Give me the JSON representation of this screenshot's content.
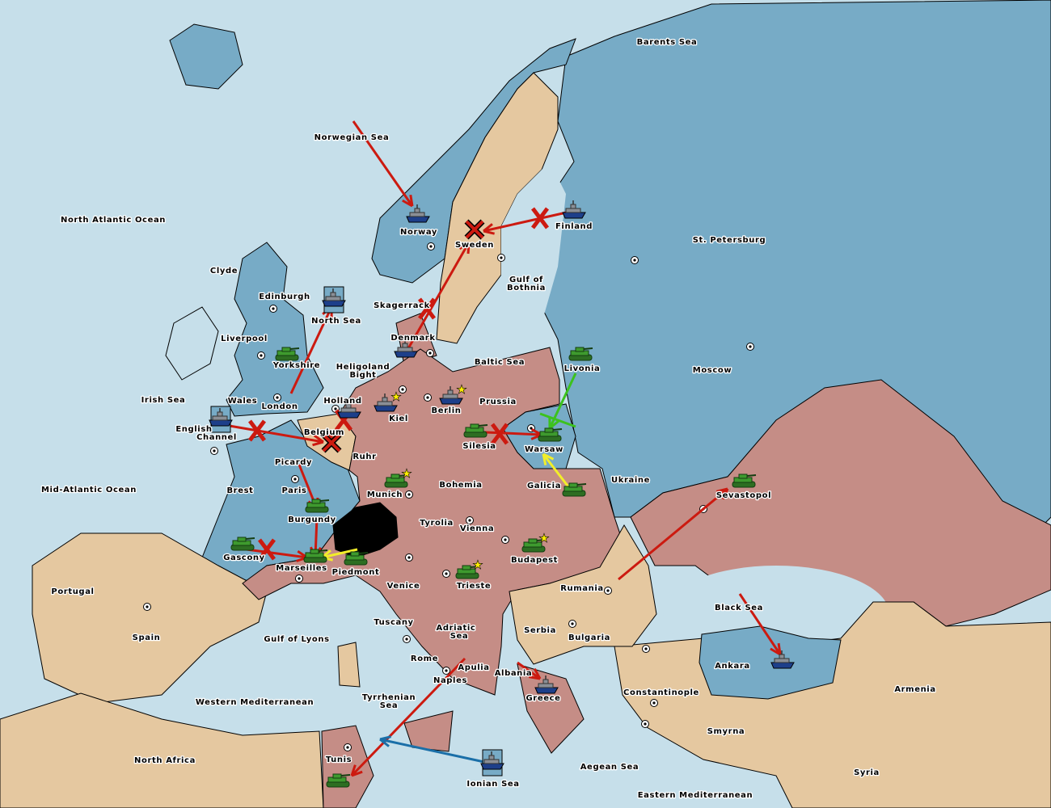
{
  "colors": {
    "sea": "#c6dfea",
    "blue_power": "#77abc6",
    "pink_power": "#c58d86",
    "neutral": "#e5c8a0",
    "impassable": "#000000",
    "army": "#3e9a2e",
    "fleet": "#8a8f96",
    "order_red": "#cc1a10",
    "order_yellow": "#f2ee2a",
    "order_green": "#3cc21e",
    "order_blue": "#1a6fa8"
  },
  "labels": [
    "Barents Sea",
    "Norwegian Sea",
    "North Atlantic Ocean",
    "Norway",
    "Sweden",
    "Finland",
    "St. Petersburg",
    "Gulf of",
    "Bothnia",
    "Clyde",
    "Edinburgh",
    "Skagerrack",
    "North Sea",
    "Liverpool",
    "Denmark",
    "Baltic Sea",
    "Yorkshire",
    "Heligoland",
    "Bight",
    "Livonia",
    "Moscow",
    "Irish Sea",
    "Wales",
    "Holland",
    "Prussia",
    "London",
    "Kiel",
    "Berlin",
    "English",
    "Channel",
    "Belgium",
    "Silesia",
    "Warsaw",
    "Ruhr",
    "Picardy",
    "Mid-Atlantic Ocean",
    "Brest",
    "Paris",
    "Munich",
    "Bohemia",
    "Galicia",
    "Ukraine",
    "Sevastopol",
    "Burgundy",
    "Tyrolia",
    "Vienna",
    "Gascony",
    "Budapest",
    "Marseilles",
    "Piedmont",
    "Portugal",
    "Venice",
    "Trieste",
    "Rumania",
    "Black Sea",
    "Tuscany",
    "Adriatic",
    "Sea",
    "Serbia",
    "Spain",
    "Gulf of Lyons",
    "Bulgaria",
    "Rome",
    "Apulia",
    "Albania",
    "Ankara",
    "Naples",
    "Armenia",
    "Constantinople",
    "Greece",
    "Western Mediterranean",
    "Tyrrhenian",
    "Sea",
    "Smyrna",
    "North Africa",
    "Tunis",
    "Aegean Sea",
    "Syria",
    "Ionian Sea",
    "Eastern Mediterranean"
  ],
  "units": [
    {
      "type": "fleet",
      "province": "Norway"
    },
    {
      "type": "fleet",
      "province": "Finland"
    },
    {
      "type": "fleet",
      "province": "Denmark"
    },
    {
      "type": "fleet",
      "province": "Holland"
    },
    {
      "type": "fleet",
      "province": "Kiel"
    },
    {
      "type": "fleet",
      "province": "Berlin"
    },
    {
      "type": "fleet",
      "province": "Greece"
    },
    {
      "type": "fleet",
      "province": "Ankara"
    },
    {
      "type": "fleet",
      "province": "North Sea",
      "dislodged": true
    },
    {
      "type": "fleet",
      "province": "English Channel",
      "dislodged": true
    },
    {
      "type": "fleet",
      "province": "Ionian Sea",
      "dislodged": true
    },
    {
      "type": "army",
      "province": "Yorkshire"
    },
    {
      "type": "army",
      "province": "Livonia"
    },
    {
      "type": "army",
      "province": "Silesia"
    },
    {
      "type": "army",
      "province": "Warsaw"
    },
    {
      "type": "army",
      "province": "Galicia"
    },
    {
      "type": "army",
      "province": "Munich"
    },
    {
      "type": "army",
      "province": "Burgundy"
    },
    {
      "type": "army",
      "province": "Gascony"
    },
    {
      "type": "army",
      "province": "Marseilles"
    },
    {
      "type": "army",
      "province": "Piedmont"
    },
    {
      "type": "army",
      "province": "Budapest"
    },
    {
      "type": "army",
      "province": "Trieste"
    },
    {
      "type": "army",
      "province": "Sevastopol"
    },
    {
      "type": "army",
      "province": "Tunis"
    }
  ],
  "home_center_stars": [
    "Kiel",
    "Berlin",
    "Munich",
    "Budapest",
    "Trieste"
  ],
  "orders": [
    {
      "color": "red",
      "from": "Norwegian Sea",
      "to": "Norway"
    },
    {
      "color": "red",
      "from": "Yorkshire",
      "to": "North Sea"
    },
    {
      "color": "red",
      "from": "Denmark",
      "to": "Sweden",
      "failed": true
    },
    {
      "color": "red",
      "from": "Finland",
      "to": "Sweden",
      "failed": true
    },
    {
      "color": "red",
      "from": "English Channel",
      "to": "Belgium",
      "failed": true
    },
    {
      "color": "red",
      "from": "Holland",
      "to": "Belgium",
      "failed": true
    },
    {
      "color": "red",
      "from": "Picardy",
      "to": "Burgundy"
    },
    {
      "color": "red",
      "from": "Burgundy",
      "to": "Marseilles"
    },
    {
      "color": "red",
      "from": "Gascony",
      "to": "Marseilles",
      "failed": true
    },
    {
      "color": "red",
      "from": "Silesia",
      "to": "Warsaw",
      "failed": true
    },
    {
      "color": "red",
      "from": "Rumania",
      "to": "Sevastopol"
    },
    {
      "color": "red",
      "from": "Black Sea",
      "to": "Ankara"
    },
    {
      "color": "red",
      "from": "Naples",
      "to": "Tunis"
    },
    {
      "color": "red",
      "from": "Albania",
      "to": "Greece"
    },
    {
      "color": "yellow",
      "from": "Galicia",
      "to": "Warsaw"
    },
    {
      "color": "yellow",
      "from": "Piedmont",
      "to": "Marseilles"
    },
    {
      "color": "green",
      "from": "Livonia",
      "to": "Warsaw"
    },
    {
      "color": "blue",
      "from": "Ionian Sea",
      "to": "Tunis"
    }
  ]
}
